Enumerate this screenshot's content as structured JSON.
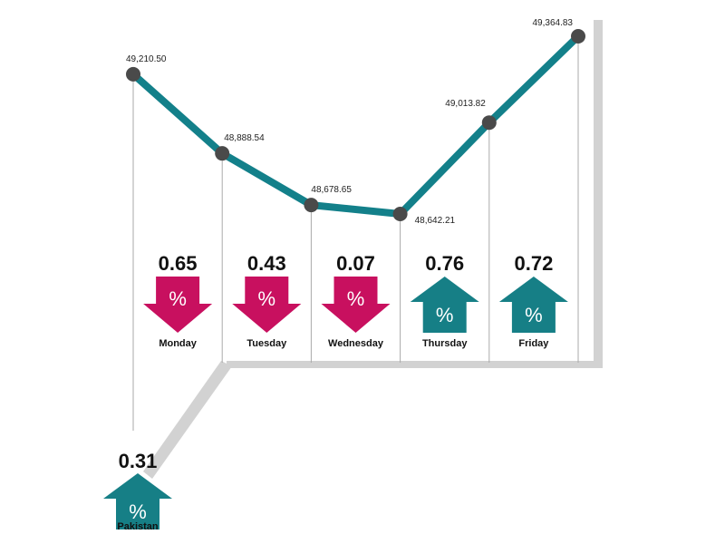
{
  "chart_data": {
    "type": "line",
    "values": [
      49210.5,
      48888.54,
      48678.65,
      48642.21,
      49013.82,
      49364.83
    ],
    "value_labels": [
      "49,210.50",
      "48,888.54",
      "48,678.65",
      "48,642.21",
      "49,013.82",
      "49,364.83"
    ],
    "line_color": "#13808a",
    "marker_color": "#4a4a4a",
    "up_color": "#167f86",
    "down_color": "#c8105f",
    "symbol": "%",
    "daily_changes": [
      {
        "name": "Monday",
        "change": 0.65,
        "direction": "down"
      },
      {
        "name": "Tuesday",
        "change": 0.43,
        "direction": "down"
      },
      {
        "name": "Wednesday",
        "change": 0.07,
        "direction": "down"
      },
      {
        "name": "Thursday",
        "change": 0.76,
        "direction": "up"
      },
      {
        "name": "Friday",
        "change": 0.72,
        "direction": "up"
      }
    ],
    "pakistan": {
      "name": "Pakistan",
      "change": 0.31,
      "direction": "up"
    }
  }
}
